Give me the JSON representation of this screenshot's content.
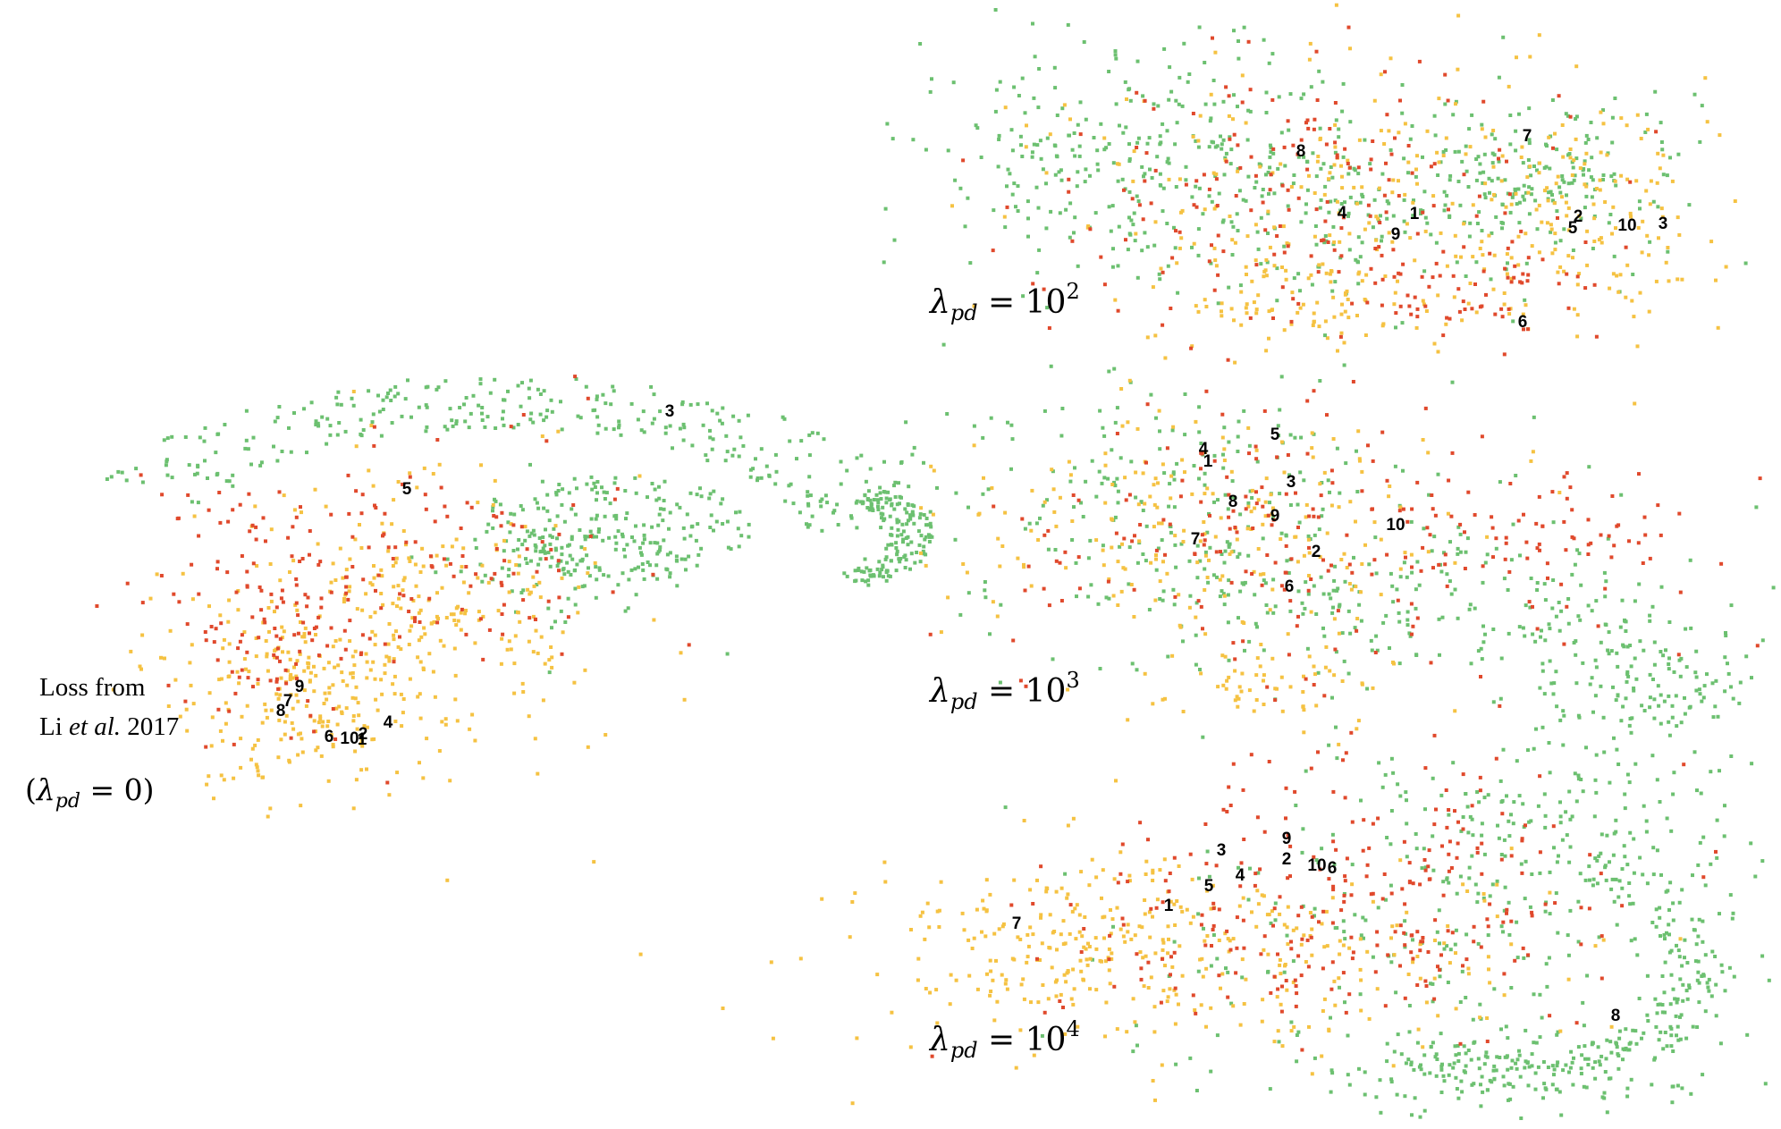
{
  "colors": {
    "green": "#6cc070",
    "yellow": "#f5c242",
    "red": "#e0492c",
    "label": "#000000"
  },
  "chart_data": [
    {
      "type": "scatter",
      "panel": "left",
      "caption_lines": [
        "Loss from",
        "Li",
        "et al.",
        "2017"
      ],
      "lambda_caption": {
        "open": "(",
        "symbol": "λ",
        "sub": "pd",
        "eq": "=",
        "value": "0",
        "close": ")"
      },
      "labels": [
        "1",
        "2",
        "3",
        "4",
        "5",
        "6",
        "7",
        "8",
        "9",
        "10"
      ],
      "clusters": [
        {
          "color": "green",
          "count": 520,
          "region": "upper-right-arm"
        },
        {
          "color": "yellow",
          "count": 480,
          "region": "lower-left"
        },
        {
          "color": "red",
          "count": 260,
          "region": "left-center"
        }
      ]
    },
    {
      "type": "scatter",
      "panel": "top-right",
      "lambda_caption": {
        "symbol": "λ",
        "sub": "pd",
        "eq": "=",
        "base": "10",
        "exp": "2"
      },
      "labels": [
        "1",
        "2",
        "3",
        "4",
        "5",
        "6",
        "7",
        "8",
        "9",
        "10"
      ]
    },
    {
      "type": "scatter",
      "panel": "middle-right",
      "lambda_caption": {
        "symbol": "λ",
        "sub": "pd",
        "eq": "=",
        "base": "10",
        "exp": "3"
      },
      "labels": [
        "1",
        "2",
        "3",
        "4",
        "5",
        "6",
        "7",
        "8",
        "9",
        "10"
      ]
    },
    {
      "type": "scatter",
      "panel": "bottom-right",
      "lambda_caption": {
        "symbol": "λ",
        "sub": "pd",
        "eq": "=",
        "base": "10",
        "exp": "4"
      },
      "labels": [
        "1",
        "2",
        "3",
        "4",
        "5",
        "6",
        "7",
        "8",
        "9",
        "10"
      ]
    }
  ]
}
